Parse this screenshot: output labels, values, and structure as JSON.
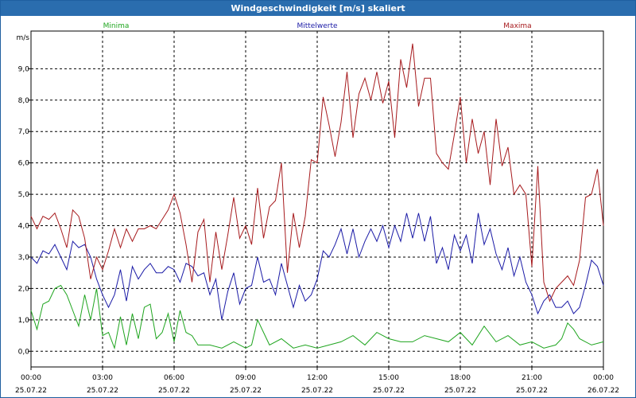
{
  "window": {
    "title": "Windgeschwindigkeit [m/s] skaliert"
  },
  "chart_data": {
    "type": "line",
    "title": "Windgeschwindigkeit [m/s] skaliert",
    "ylabel": "m/s",
    "xlabel": "",
    "ylim": [
      -0.5,
      10.2
    ],
    "xlim": [
      0,
      24
    ],
    "grid": true,
    "legend_position": "top",
    "yticks": [
      {
        "value": 0,
        "label": "0,0"
      },
      {
        "value": 1,
        "label": "1,0"
      },
      {
        "value": 2,
        "label": "2,0"
      },
      {
        "value": 3,
        "label": "3,0"
      },
      {
        "value": 4,
        "label": "4,0"
      },
      {
        "value": 5,
        "label": "5,0"
      },
      {
        "value": 6,
        "label": "6,0"
      },
      {
        "value": 7,
        "label": "7,0"
      },
      {
        "value": 8,
        "label": "8,0"
      },
      {
        "value": 9,
        "label": "9,0"
      }
    ],
    "xticks": [
      {
        "value": 0,
        "time": "00:00",
        "date": "25.07.22"
      },
      {
        "value": 3,
        "time": "03:00",
        "date": "25.07.22"
      },
      {
        "value": 6,
        "time": "06:00",
        "date": "25.07.22"
      },
      {
        "value": 9,
        "time": "09:00",
        "date": "25.07.22"
      },
      {
        "value": 12,
        "time": "12:00",
        "date": "25.07.22"
      },
      {
        "value": 15,
        "time": "15:00",
        "date": "25.07.22"
      },
      {
        "value": 18,
        "time": "18:00",
        "date": "25.07.22"
      },
      {
        "value": 21,
        "time": "21:00",
        "date": "25.07.22"
      },
      {
        "value": 24,
        "time": "00:00",
        "date": "26.07.22"
      }
    ],
    "series": [
      {
        "name": "Minima",
        "color": "#1fa51f",
        "x": [
          0,
          0.25,
          0.5,
          0.75,
          1,
          1.25,
          1.5,
          1.75,
          2,
          2.25,
          2.5,
          2.75,
          3,
          3.25,
          3.5,
          3.75,
          4,
          4.25,
          4.5,
          4.75,
          5,
          5.25,
          5.5,
          5.75,
          6,
          6.25,
          6.5,
          6.75,
          7,
          7.5,
          8,
          8.5,
          9,
          9.25,
          9.5,
          9.75,
          10,
          10.5,
          11,
          11.5,
          12,
          12.5,
          13,
          13.5,
          14,
          14.5,
          15,
          15.5,
          16,
          16.5,
          17,
          17.5,
          18,
          18.5,
          19,
          19.5,
          20,
          20.5,
          21,
          21.5,
          22,
          22.25,
          22.5,
          22.75,
          23,
          23.5,
          24
        ],
        "y": [
          1.3,
          0.7,
          1.5,
          1.6,
          2.0,
          2.1,
          1.8,
          1.3,
          0.8,
          1.8,
          1.0,
          2.0,
          0.5,
          0.6,
          0.1,
          1.1,
          0.2,
          1.2,
          0.4,
          1.4,
          1.5,
          0.4,
          0.6,
          1.2,
          0.3,
          1.3,
          0.6,
          0.5,
          0.2,
          0.2,
          0.1,
          0.3,
          0.1,
          0.2,
          1.0,
          0.6,
          0.2,
          0.4,
          0.1,
          0.2,
          0.1,
          0.2,
          0.3,
          0.5,
          0.2,
          0.6,
          0.4,
          0.3,
          0.3,
          0.5,
          0.4,
          0.3,
          0.6,
          0.2,
          0.8,
          0.3,
          0.5,
          0.2,
          0.3,
          0.1,
          0.2,
          0.4,
          0.9,
          0.7,
          0.4,
          0.2,
          0.3
        ]
      },
      {
        "name": "Mittelwerte",
        "color": "#1a1aa6",
        "x": [
          0,
          0.25,
          0.5,
          0.75,
          1,
          1.25,
          1.5,
          1.75,
          2,
          2.25,
          2.5,
          2.75,
          3,
          3.25,
          3.5,
          3.75,
          4,
          4.25,
          4.5,
          4.75,
          5,
          5.25,
          5.5,
          5.75,
          6,
          6.25,
          6.5,
          6.75,
          7,
          7.25,
          7.5,
          7.75,
          8,
          8.25,
          8.5,
          8.75,
          9,
          9.25,
          9.5,
          9.75,
          10,
          10.25,
          10.5,
          10.75,
          11,
          11.25,
          11.5,
          11.75,
          12,
          12.25,
          12.5,
          12.75,
          13,
          13.25,
          13.5,
          13.75,
          14,
          14.25,
          14.5,
          14.75,
          15,
          15.25,
          15.5,
          15.75,
          16,
          16.25,
          16.5,
          16.75,
          17,
          17.25,
          17.5,
          17.75,
          18,
          18.25,
          18.5,
          18.75,
          19,
          19.25,
          19.5,
          19.75,
          20,
          20.25,
          20.5,
          20.75,
          21,
          21.25,
          21.5,
          21.75,
          22,
          22.25,
          22.5,
          22.75,
          23,
          23.25,
          23.5,
          23.75,
          24
        ],
        "y": [
          3.0,
          2.8,
          3.2,
          3.1,
          3.4,
          3.0,
          2.6,
          3.5,
          3.3,
          3.4,
          3.0,
          2.3,
          1.8,
          1.4,
          1.8,
          2.6,
          1.6,
          2.7,
          2.3,
          2.6,
          2.8,
          2.5,
          2.5,
          2.7,
          2.6,
          2.2,
          2.8,
          2.7,
          2.4,
          2.5,
          1.8,
          2.3,
          1.0,
          1.9,
          2.5,
          1.5,
          2.0,
          2.1,
          3.0,
          2.2,
          2.3,
          1.8,
          2.8,
          2.1,
          1.4,
          2.1,
          1.6,
          1.8,
          2.3,
          3.2,
          3.0,
          3.4,
          3.9,
          3.1,
          3.9,
          3.0,
          3.5,
          3.9,
          3.5,
          4.0,
          3.3,
          4.0,
          3.5,
          4.4,
          3.6,
          4.4,
          3.5,
          4.3,
          2.8,
          3.3,
          2.6,
          3.7,
          3.2,
          3.7,
          2.8,
          4.4,
          3.4,
          3.9,
          3.1,
          2.6,
          3.3,
          2.4,
          3.0,
          2.2,
          1.8,
          1.2,
          1.6,
          1.8,
          1.4,
          1.4,
          1.6,
          1.2,
          1.4,
          2.1,
          2.9,
          2.7,
          2.1
        ]
      },
      {
        "name": "Maxima",
        "color": "#a6191c",
        "x": [
          0,
          0.25,
          0.5,
          0.75,
          1,
          1.25,
          1.5,
          1.75,
          2,
          2.25,
          2.5,
          2.75,
          3,
          3.25,
          3.5,
          3.75,
          4,
          4.25,
          4.5,
          4.75,
          5,
          5.25,
          5.5,
          5.75,
          6,
          6.25,
          6.5,
          6.75,
          7,
          7.25,
          7.5,
          7.75,
          8,
          8.25,
          8.5,
          8.75,
          9,
          9.25,
          9.5,
          9.75,
          10,
          10.25,
          10.5,
          10.75,
          11,
          11.25,
          11.5,
          11.75,
          12,
          12.25,
          12.5,
          12.75,
          13,
          13.25,
          13.5,
          13.75,
          14,
          14.25,
          14.5,
          14.75,
          15,
          15.25,
          15.5,
          15.75,
          16,
          16.25,
          16.5,
          16.75,
          17,
          17.25,
          17.5,
          17.75,
          18,
          18.25,
          18.5,
          18.75,
          19,
          19.25,
          19.5,
          19.75,
          20,
          20.25,
          20.5,
          20.75,
          21,
          21.25,
          21.5,
          21.75,
          22,
          22.25,
          22.5,
          22.75,
          23,
          23.25,
          23.5,
          23.75,
          24
        ],
        "y": [
          4.3,
          3.9,
          4.3,
          4.2,
          4.4,
          3.9,
          3.3,
          4.5,
          4.3,
          3.6,
          2.3,
          3.0,
          2.6,
          3.2,
          3.9,
          3.3,
          3.9,
          3.5,
          3.9,
          3.9,
          4.0,
          3.9,
          4.2,
          4.5,
          5.0,
          4.4,
          3.4,
          2.2,
          3.8,
          4.2,
          2.2,
          3.8,
          2.6,
          3.7,
          4.9,
          3.6,
          4.0,
          3.4,
          5.2,
          3.6,
          4.6,
          4.8,
          6.0,
          2.5,
          4.4,
          3.3,
          4.3,
          6.1,
          6.0,
          8.1,
          7.2,
          6.2,
          7.3,
          8.9,
          6.8,
          8.2,
          8.7,
          8.0,
          8.9,
          7.9,
          8.6,
          6.8,
          9.3,
          8.4,
          9.8,
          7.8,
          8.7,
          8.7,
          6.3,
          6.0,
          5.8,
          6.9,
          8.1,
          6.0,
          7.4,
          6.3,
          7.0,
          5.3,
          7.4,
          5.9,
          6.5,
          5.0,
          5.3,
          5.0,
          2.7,
          5.9,
          2.2,
          1.6,
          2.0,
          2.2,
          2.4,
          2.1,
          2.9,
          4.9,
          5.0,
          5.8,
          4.0
        ]
      }
    ]
  }
}
